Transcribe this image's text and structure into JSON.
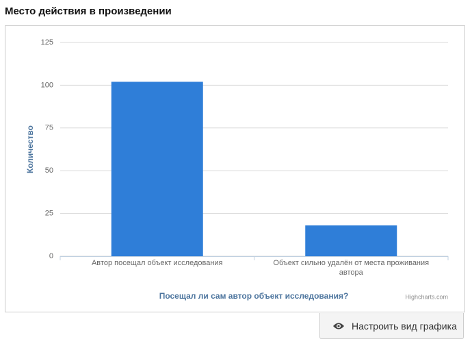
{
  "chart_data": {
    "type": "bar",
    "title": "Место действия в произведении",
    "categories": [
      "Автор посещал объект исследования",
      "Объект сильно удалён от места проживания автора"
    ],
    "values": [
      102,
      18
    ],
    "color": "#2f7ed8",
    "ylim": [
      0,
      125
    ],
    "yticks": [
      0,
      25,
      50,
      75,
      100,
      125
    ],
    "grid": true,
    "y_axis_title": "Количество",
    "x_axis_title": "Посещал ли сам автор объект исследования?",
    "credits": "Highcharts.com"
  },
  "button": {
    "label": "Настроить вид графика"
  }
}
